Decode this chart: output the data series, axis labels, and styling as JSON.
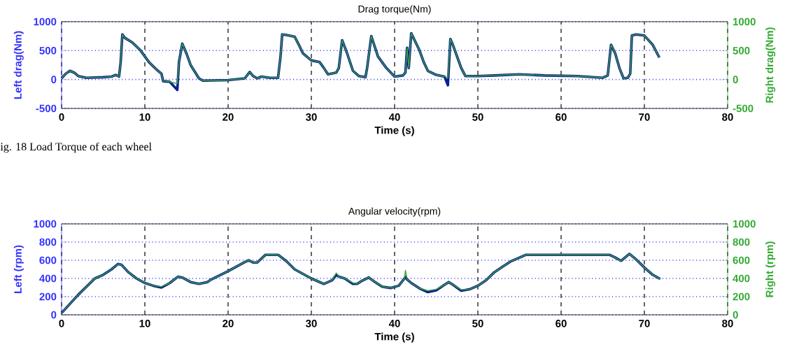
{
  "chart_data": [
    {
      "type": "line",
      "title": "Drag torque(Nm)",
      "xlabel": "Time (s)",
      "ylabel": "Left drag(Nm)",
      "y2label": "Right drag(Nm)",
      "grid": true,
      "annotations": [
        "ig.  18  Load Torque of each wheel"
      ],
      "xlim": [
        0,
        80
      ],
      "xticks": [
        0,
        10,
        20,
        30,
        40,
        50,
        60,
        70,
        80
      ],
      "ylim": [
        -500,
        1000
      ],
      "yticks": [
        -500,
        0,
        500,
        1000
      ],
      "y2lim": [
        -500,
        1000
      ],
      "y2ticks": [
        -500,
        0,
        500,
        1000
      ],
      "x": [
        0,
        0.5,
        1,
        1.5,
        2,
        3,
        5,
        6,
        6.5,
        6.9,
        7.1,
        7.3,
        7.6,
        8.5,
        9.5,
        10.5,
        11.5,
        12,
        12.2,
        13,
        13.9,
        14.1,
        14.5,
        15,
        15.5,
        16.5,
        17,
        20,
        22,
        22.6,
        23,
        23.5,
        24,
        25,
        26,
        26.3,
        26.5,
        27,
        28,
        28.5,
        29,
        30,
        31,
        31.5,
        32,
        33,
        33.3,
        33.7,
        34.3,
        35,
        35.7,
        36.5,
        36.7,
        37.2,
        38,
        39,
        40,
        41,
        41.3,
        41.5,
        41.7,
        42,
        43,
        43.5,
        44,
        45,
        46,
        46.4,
        46.7,
        47,
        48,
        48.5,
        50,
        52,
        55,
        58,
        62,
        65,
        65.6,
        66,
        66.5,
        67,
        67.5,
        68,
        68.3,
        68.5,
        69,
        70,
        71,
        71.8
      ],
      "series": [
        {
          "color": "#0a1f8f",
          "axis": "y",
          "values": [
            20,
            100,
            150,
            120,
            60,
            30,
            40,
            50,
            80,
            50,
            300,
            780,
            720,
            640,
            500,
            300,
            160,
            100,
            -30,
            -40,
            -180,
            300,
            620,
            450,
            250,
            20,
            -20,
            -10,
            20,
            130,
            60,
            20,
            50,
            30,
            30,
            400,
            780,
            770,
            740,
            600,
            450,
            330,
            300,
            200,
            90,
            120,
            200,
            680,
            450,
            150,
            60,
            40,
            200,
            750,
            400,
            200,
            50,
            70,
            120,
            550,
            200,
            800,
            500,
            300,
            150,
            80,
            50,
            -100,
            700,
            600,
            200,
            60,
            60,
            70,
            90,
            70,
            60,
            30,
            70,
            600,
            450,
            200,
            20,
            30,
            100,
            760,
            780,
            760,
            600,
            380
          ]
        },
        {
          "color": "#3aa53a",
          "axis": "y2",
          "values": [
            20,
            100,
            150,
            120,
            60,
            30,
            40,
            50,
            80,
            50,
            300,
            780,
            720,
            640,
            500,
            300,
            160,
            100,
            -30,
            -40,
            -70,
            300,
            620,
            450,
            250,
            20,
            -20,
            -10,
            20,
            130,
            60,
            20,
            50,
            30,
            30,
            400,
            780,
            770,
            740,
            600,
            450,
            330,
            300,
            200,
            90,
            120,
            200,
            680,
            450,
            150,
            60,
            40,
            200,
            750,
            400,
            200,
            50,
            70,
            120,
            550,
            200,
            800,
            500,
            300,
            150,
            80,
            50,
            30,
            700,
            600,
            200,
            60,
            60,
            70,
            90,
            70,
            60,
            30,
            70,
            600,
            450,
            200,
            20,
            30,
            100,
            760,
            780,
            760,
            600,
            380
          ]
        }
      ]
    },
    {
      "type": "line",
      "title": "Angular velocity(rpm)",
      "xlabel": "Time (s)",
      "ylabel": "Left (rpm)",
      "y2label": "Right (rpm)",
      "grid": true,
      "xlim": [
        0,
        80
      ],
      "xticks": [
        0,
        10,
        20,
        30,
        40,
        50,
        60,
        70,
        80
      ],
      "ylim": [
        0,
        1000
      ],
      "yticks": [
        0,
        200,
        400,
        600,
        800,
        1000
      ],
      "y2lim": [
        0,
        1000
      ],
      "y2ticks": [
        0,
        200,
        400,
        600,
        800,
        1000
      ],
      "x": [
        0,
        2,
        4,
        5,
        6,
        6.8,
        7.2,
        8,
        9,
        10,
        11,
        12,
        13,
        14,
        14.5,
        15.5,
        16.5,
        17.5,
        18,
        20,
        22,
        22.5,
        23,
        23.5,
        24.5,
        26,
        27,
        28,
        30,
        31.5,
        32.5,
        33,
        33.3,
        34,
        35,
        35.5,
        36,
        36.9,
        37.5,
        38.5,
        39.5,
        40.5,
        41.2,
        41.3,
        41.5,
        42,
        43,
        44,
        45,
        46,
        46.5,
        47,
        48,
        49,
        50,
        51,
        52,
        53,
        54,
        55.8,
        60,
        65.8,
        66.5,
        67.2,
        68.2,
        69,
        70,
        71,
        71.9
      ],
      "series": [
        {
          "color": "#0a1f8f",
          "axis": "y",
          "values": [
            20,
            220,
            400,
            440,
            500,
            560,
            550,
            470,
            400,
            350,
            320,
            300,
            350,
            420,
            410,
            360,
            340,
            360,
            390,
            480,
            580,
            600,
            575,
            575,
            660,
            660,
            590,
            500,
            400,
            340,
            380,
            440,
            420,
            400,
            340,
            340,
            370,
            410,
            370,
            310,
            295,
            320,
            400,
            420,
            390,
            350,
            290,
            250,
            270,
            330,
            360,
            330,
            265,
            280,
            320,
            380,
            470,
            530,
            590,
            660,
            660,
            660,
            630,
            594,
            670,
            610,
            520,
            440,
            394
          ]
        },
        {
          "color": "#3aa53a",
          "axis": "y2",
          "values": [
            20,
            220,
            400,
            440,
            500,
            560,
            550,
            470,
            400,
            350,
            320,
            310,
            350,
            420,
            410,
            360,
            340,
            360,
            390,
            480,
            580,
            600,
            575,
            575,
            660,
            660,
            590,
            500,
            400,
            340,
            380,
            460,
            420,
            400,
            350,
            340,
            370,
            410,
            370,
            310,
            295,
            320,
            400,
            489,
            390,
            350,
            290,
            265,
            280,
            330,
            360,
            330,
            275,
            280,
            320,
            380,
            470,
            530,
            590,
            660,
            660,
            660,
            630,
            594,
            670,
            610,
            520,
            440,
            394
          ]
        }
      ]
    }
  ]
}
